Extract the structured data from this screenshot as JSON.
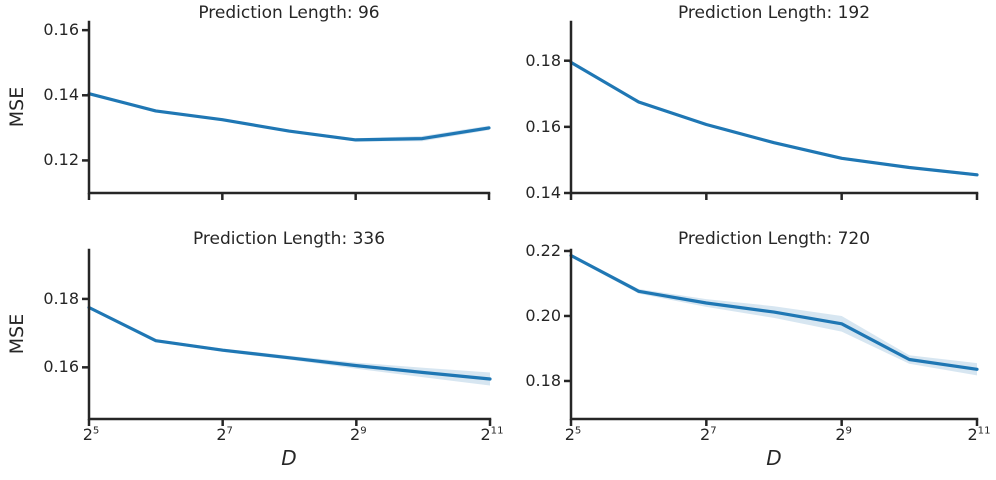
{
  "figure": {
    "background": "#ffffff",
    "line_color": "#1f77b4",
    "band_opacity": 0.18,
    "axis_color": "#262626",
    "ylabel": "MSE",
    "xlabel": "D",
    "x_tick_base": "2"
  },
  "chart_data": [
    {
      "type": "line",
      "title": "Prediction Length: 96",
      "xlabel": "D",
      "ylabel": "MSE",
      "x_axis": {
        "scale": "log2",
        "x_exponents": [
          5,
          6,
          7,
          8,
          9,
          10,
          11
        ],
        "tick_exponents": [
          5,
          7,
          9,
          11
        ],
        "show_tick_labels": false
      },
      "y_axis": {
        "ticks": [
          0.12,
          0.14,
          0.16
        ],
        "lim": [
          0.11,
          0.1625
        ]
      },
      "series": [
        {
          "name": "MSE",
          "values": [
            0.1405,
            0.1352,
            0.1325,
            0.129,
            0.1263,
            0.1267,
            0.13
          ],
          "band_half_width": [
            0.0003,
            0.0003,
            0.0003,
            0.0004,
            0.0005,
            0.0008,
            0.0007
          ]
        }
      ]
    },
    {
      "type": "line",
      "title": "Prediction Length: 192",
      "xlabel": "D",
      "ylabel": "MSE",
      "x_axis": {
        "scale": "log2",
        "x_exponents": [
          5,
          6,
          7,
          8,
          9,
          10,
          11
        ],
        "tick_exponents": [
          5,
          7,
          9,
          11
        ],
        "show_tick_labels": false
      },
      "y_axis": {
        "ticks": [
          0.14,
          0.16,
          0.18
        ],
        "lim": [
          0.14,
          0.1917
        ]
      },
      "series": [
        {
          "name": "MSE",
          "values": [
            0.1795,
            0.1675,
            0.1607,
            0.1552,
            0.1505,
            0.1477,
            0.1455
          ],
          "band_half_width": [
            0.0003,
            0.0005,
            0.0004,
            0.0004,
            0.0004,
            0.0004,
            0.0005
          ]
        }
      ]
    },
    {
      "type": "line",
      "title": "Prediction Length: 336",
      "xlabel": "D",
      "ylabel": "MSE",
      "x_axis": {
        "scale": "log2",
        "x_exponents": [
          5,
          6,
          7,
          8,
          9,
          10,
          11
        ],
        "tick_exponents": [
          5,
          7,
          9,
          11
        ],
        "show_tick_labels": true
      },
      "y_axis": {
        "ticks": [
          0.16,
          0.18
        ],
        "lim": [
          0.1449,
          0.1943
        ]
      },
      "series": [
        {
          "name": "MSE",
          "values": [
            0.1775,
            0.1678,
            0.165,
            0.1628,
            0.1605,
            0.1585,
            0.1566
          ],
          "band_half_width": [
            0.0003,
            0.0004,
            0.0005,
            0.0006,
            0.0009,
            0.0014,
            0.0019
          ]
        }
      ]
    },
    {
      "type": "line",
      "title": "Prediction Length: 720",
      "xlabel": "D",
      "ylabel": "MSE",
      "x_axis": {
        "scale": "log2",
        "x_exponents": [
          5,
          6,
          7,
          8,
          9,
          10,
          11
        ],
        "tick_exponents": [
          5,
          7,
          9,
          11
        ],
        "show_tick_labels": true
      },
      "y_axis": {
        "ticks": [
          0.18,
          0.2,
          0.22
        ],
        "lim": [
          0.1683,
          0.2203
        ]
      },
      "series": [
        {
          "name": "MSE",
          "values": [
            0.2186,
            0.2076,
            0.204,
            0.2012,
            0.1976,
            0.1866,
            0.1836
          ],
          "band_half_width": [
            0.0005,
            0.0007,
            0.0012,
            0.0018,
            0.0024,
            0.0013,
            0.0019
          ]
        }
      ]
    }
  ]
}
